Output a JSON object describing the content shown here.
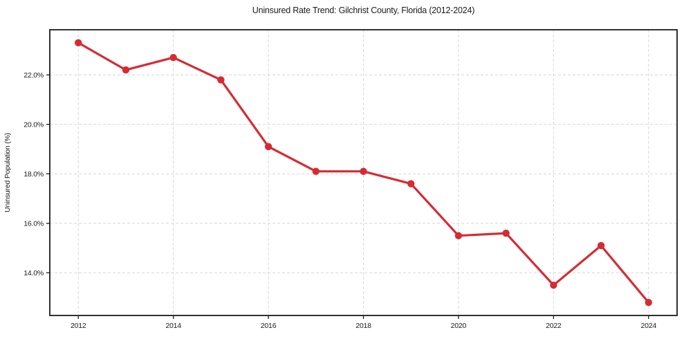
{
  "chart_data": {
    "type": "line",
    "title": "Uninsured Rate Trend: Gilchrist County, Florida (2012-2024)",
    "xlabel": "",
    "ylabel": "Uninsured Population (%)",
    "x": [
      2012,
      2013,
      2014,
      2015,
      2016,
      2017,
      2018,
      2019,
      2020,
      2021,
      2022,
      2023,
      2024
    ],
    "series": [
      {
        "name": "Uninsured rate",
        "values": [
          23.3,
          22.2,
          22.7,
          21.8,
          19.1,
          18.1,
          18.1,
          17.6,
          15.5,
          15.6,
          13.5,
          15.1,
          12.8
        ],
        "color": "#d62b33",
        "marker": "circle",
        "line_style": "solid"
      }
    ],
    "xlim": [
      2011.4,
      2024.6
    ],
    "ylim": [
      12.275,
      23.825
    ],
    "xticks": {
      "values": [
        2012,
        2014,
        2016,
        2018,
        2020,
        2022,
        2024
      ],
      "labels": [
        "2012",
        "2014",
        "2016",
        "2018",
        "2020",
        "2022",
        "2024"
      ]
    },
    "yticks": {
      "values": [
        14,
        16,
        18,
        20,
        22
      ],
      "labels": [
        "14.0%",
        "16.0%",
        "18.0%",
        "20.0%",
        "22.0%"
      ]
    },
    "grid": true,
    "grid_style": "dashed",
    "grid_color": "#d6d6d6",
    "spine_color": "#1a1a1a",
    "background": "#ffffff",
    "text_color": "#1a1a1a",
    "legend_position": "none"
  }
}
